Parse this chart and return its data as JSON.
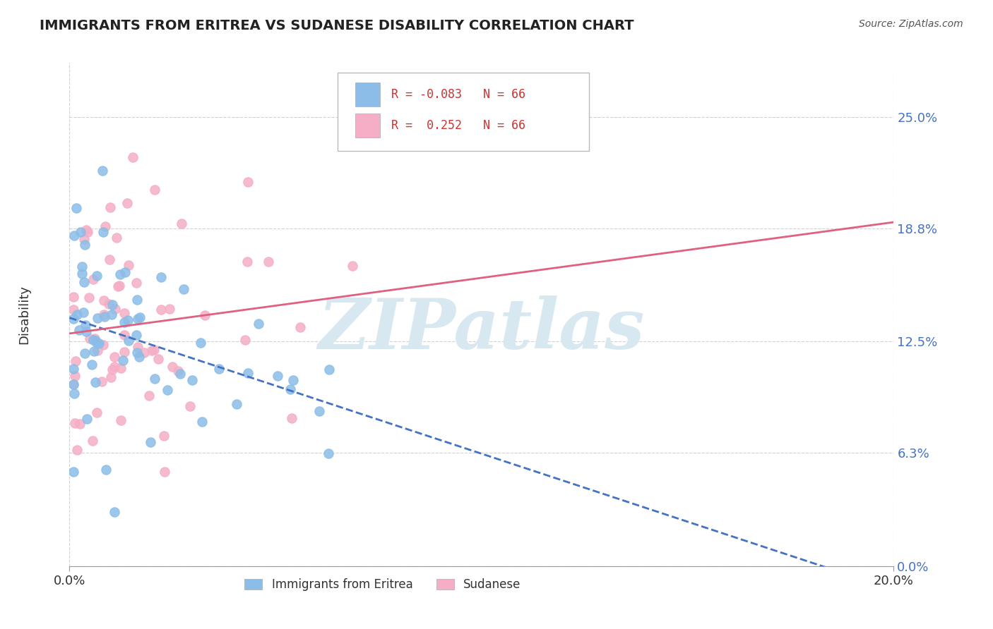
{
  "title": "IMMIGRANTS FROM ERITREA VS SUDANESE DISABILITY CORRELATION CHART",
  "source": "Source: ZipAtlas.com",
  "ylabel": "Disability",
  "legend_labels": [
    "Immigrants from Eritrea",
    "Sudanese"
  ],
  "r_eritrea": -0.083,
  "r_sudanese": 0.252,
  "n_eritrea": 66,
  "n_sudanese": 66,
  "color_eritrea": "#8bbde8",
  "color_sudanese": "#f5aec5",
  "line_color_eritrea": "#4472c4",
  "line_color_sudanese": "#e06080",
  "xmin": 0.0,
  "xmax": 0.2,
  "ymin": 0.0,
  "ymax": 0.28,
  "ytick_vals": [
    0.0,
    0.063,
    0.125,
    0.188,
    0.25
  ],
  "ytick_labels": [
    "0.0%",
    "6.3%",
    "12.5%",
    "18.8%",
    "25.0%"
  ],
  "xtick_vals": [
    0.0,
    0.2
  ],
  "xtick_labels": [
    "0.0%",
    "20.0%"
  ],
  "background_color": "#ffffff",
  "grid_color": "#cccccc",
  "watermark_text": "ZIPatlas",
  "watermark_color": "#d8e8f0",
  "legend_box_color": "#ffffff",
  "legend_box_edge": "#bbbbbb"
}
